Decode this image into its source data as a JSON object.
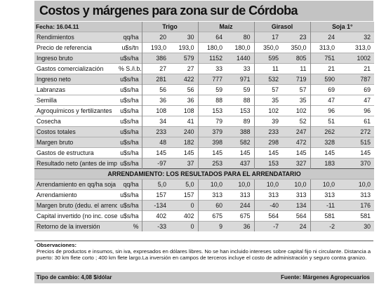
{
  "title": "Costos y márgenes para zona sur de Córdoba",
  "header": {
    "date": "Fecha: 16.04.11",
    "crops": [
      "Trigo",
      "Maíz",
      "Girasol",
      "Soja 1°"
    ]
  },
  "rows": [
    {
      "label": "Rendimientos",
      "unit": "qq/ha",
      "v": [
        "20",
        "30",
        "64",
        "80",
        "17",
        "23",
        "24",
        "32"
      ]
    },
    {
      "label": "Precio de referencia",
      "unit": "u$s/tn",
      "v": [
        "193,0",
        "193,0",
        "180,0",
        "180,0",
        "350,0",
        "350,0",
        "313,0",
        "313,0"
      ]
    },
    {
      "label": "Ingreso bruto",
      "unit": "u$s/ha",
      "v": [
        "386",
        "579",
        "1152",
        "1440",
        "595",
        "805",
        "751",
        "1002"
      ]
    },
    {
      "label": "Gastos comercialización",
      "unit": "% S./i.b.",
      "v": [
        "27",
        "27",
        "33",
        "33",
        "11",
        "11",
        "21",
        "21"
      ]
    },
    {
      "label": "Ingreso neto",
      "unit": "u$s/ha",
      "v": [
        "281",
        "422",
        "777",
        "971",
        "532",
        "719",
        "590",
        "787"
      ]
    },
    {
      "label": "Labranzas",
      "unit": "u$s/ha",
      "v": [
        "56",
        "56",
        "59",
        "59",
        "57",
        "57",
        "69",
        "69"
      ]
    },
    {
      "label": "Semilla",
      "unit": "u$s/ha",
      "v": [
        "36",
        "36",
        "88",
        "88",
        "35",
        "35",
        "47",
        "47"
      ]
    },
    {
      "label": "Agroquímicos y fertilizantes",
      "unit": "u$s/ha",
      "v": [
        "108",
        "108",
        "153",
        "153",
        "102",
        "102",
        "96",
        "96"
      ]
    },
    {
      "label": "Cosecha",
      "unit": "u$s/ha",
      "v": [
        "34",
        "41",
        "79",
        "89",
        "39",
        "52",
        "51",
        "61"
      ]
    },
    {
      "label": "Costos totales",
      "unit": "u$s/ha",
      "v": [
        "233",
        "240",
        "379",
        "388",
        "233",
        "247",
        "262",
        "272"
      ]
    },
    {
      "label": "Margen bruto",
      "unit": "u$s/ha",
      "v": [
        "48",
        "182",
        "398",
        "582",
        "298",
        "472",
        "328",
        "515"
      ]
    },
    {
      "label": "Gastos de estructura",
      "unit": "u$s/ha",
      "v": [
        "145",
        "145",
        "145",
        "145",
        "145",
        "145",
        "145",
        "145"
      ]
    },
    {
      "label": "Resultado neto (antes de imp.)",
      "unit": "u$s/ha",
      "v": [
        "-97",
        "37",
        "253",
        "437",
        "153",
        "327",
        "183",
        "370"
      ]
    }
  ],
  "section_title": "ARRENDAMIENTO: LOS RESULTADOS PARA EL ARRENDATARIO",
  "rows2": [
    {
      "label": "Arrendamiento en qq/ha soja",
      "unit": "qq/ha",
      "v": [
        "5,0",
        "5,0",
        "10,0",
        "10,0",
        "10,0",
        "10,0",
        "10,0",
        "10,0"
      ]
    },
    {
      "label": "Arrendamiento",
      "unit": "u$s/ha",
      "v": [
        "157",
        "157",
        "313",
        "313",
        "313",
        "313",
        "313",
        "313"
      ]
    },
    {
      "label": "Margen bruto (dedu. el arrend.)",
      "unit": "u$s/ha",
      "v": [
        "-134",
        "0",
        "60",
        "244",
        "-40",
        "134",
        "-11",
        "176"
      ]
    },
    {
      "label": "Capital invertido (no inc. cosecha)",
      "unit": "u$s/ha",
      "v": [
        "402",
        "402",
        "675",
        "675",
        "564",
        "564",
        "581",
        "581"
      ]
    },
    {
      "label": "Retorno de la inversión",
      "unit": "%",
      "v": [
        "-33",
        "0",
        "9",
        "36",
        "-7",
        "24",
        "-2",
        "30"
      ]
    }
  ],
  "notes": {
    "title": "Observaciones:",
    "text": "Precios de productos e insumos, sin iva, expresados en dólares libres. No se han incluido intereses sobre capital fijo ni circulante. Distancia a puerto: 30 km flete corto ; 400 km flete largo.La inversión en campos de terceros incluye el costo de administración y seguro contra granizo."
  },
  "footer": {
    "exchange": "Tipo de cambio: 4,08 $/dólar",
    "source": "Fuente: Márgenes Agropecuarios"
  }
}
